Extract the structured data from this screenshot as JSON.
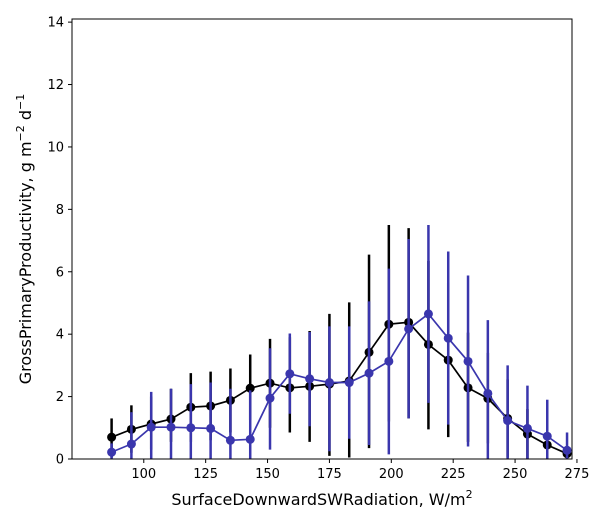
{
  "chart_data": {
    "type": "line",
    "xlabel": "SurfaceDownwardSWRadiation,  W/m",
    "xlabel_sup": "2",
    "ylabel": "GrossPrimaryProductivity,  g m",
    "ylabel_sup1": "−2",
    "ylabel_mid": " d",
    "ylabel_sup2": "−1",
    "xlim": [
      71,
      273
    ],
    "ylim": [
      0,
      14.1
    ],
    "xticks": [
      100,
      125,
      150,
      175,
      200,
      225,
      250,
      275
    ],
    "yticks": [
      0,
      2,
      4,
      6,
      8,
      10,
      12,
      14
    ],
    "grid": false,
    "x": [
      87,
      95,
      103,
      111,
      119,
      127,
      135,
      143,
      151,
      159,
      167,
      175,
      183,
      191,
      199,
      207,
      215,
      223,
      231,
      239,
      247,
      255,
      263,
      271
    ],
    "series": [
      {
        "color": "#000000",
        "values": [
          0.7,
          0.95,
          1.12,
          1.28,
          1.66,
          1.7,
          1.88,
          2.27,
          2.43,
          2.28,
          2.33,
          2.4,
          2.5,
          3.42,
          4.32,
          4.38,
          3.67,
          3.17,
          2.28,
          1.94,
          1.3,
          0.8,
          0.45,
          0.17
        ],
        "err_low": [
          0.05,
          0.2,
          0.3,
          0.55,
          0.55,
          0.6,
          0.85,
          1.25,
          1.0,
          0.85,
          0.55,
          0.1,
          0.05,
          0.35,
          1.2,
          1.3,
          0.95,
          0.7,
          0.55,
          0.5,
          0.05,
          0.0,
          0.0,
          0.0
        ],
        "err_high": [
          1.3,
          1.72,
          2.0,
          2.25,
          2.75,
          2.8,
          2.9,
          3.35,
          3.85,
          3.9,
          4.1,
          4.65,
          5.02,
          6.55,
          7.5,
          7.4,
          6.35,
          5.65,
          4.05,
          3.4,
          2.55,
          1.6,
          1.0,
          0.35
        ]
      },
      {
        "color": "#3a36ad",
        "values": [
          0.22,
          0.48,
          1.02,
          1.02,
          1.0,
          0.98,
          0.6,
          0.63,
          1.95,
          2.73,
          2.57,
          2.45,
          2.45,
          2.75,
          3.13,
          4.17,
          4.65,
          3.87,
          3.13,
          2.1,
          1.23,
          0.98,
          0.73,
          0.28
        ],
        "err_low": [
          0.0,
          0.0,
          0.0,
          0.0,
          0.0,
          0.0,
          0.0,
          0.0,
          0.3,
          1.45,
          1.05,
          0.25,
          0.65,
          0.45,
          0.15,
          1.3,
          1.8,
          1.1,
          0.4,
          0.0,
          0.0,
          0.0,
          0.0,
          0.0
        ],
        "err_high": [
          0.5,
          1.5,
          2.15,
          2.25,
          2.4,
          2.45,
          2.25,
          2.2,
          3.55,
          4.02,
          4.07,
          4.25,
          4.25,
          5.05,
          6.1,
          7.05,
          7.5,
          6.65,
          5.88,
          4.45,
          3.0,
          2.35,
          1.9,
          0.85
        ]
      }
    ]
  }
}
